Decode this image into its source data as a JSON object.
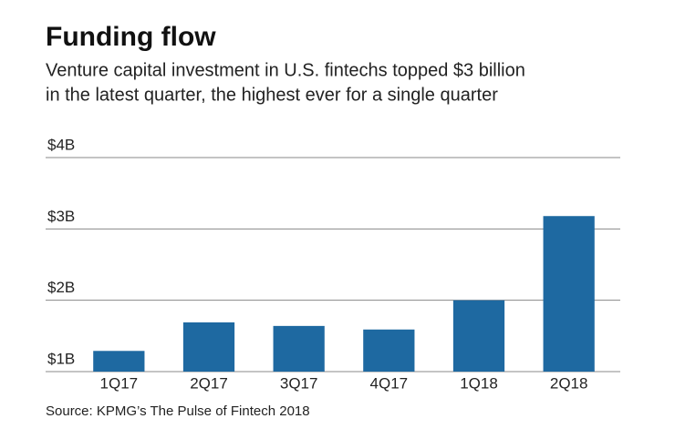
{
  "chart_data": {
    "type": "bar",
    "title": "Funding flow",
    "subtitle": [
      "Venture capital investment in U.S. fintechs topped $3 billion",
      "in the latest quarter, the highest ever for a single quarter"
    ],
    "categories": [
      "1Q17",
      "2Q17",
      "3Q17",
      "4Q17",
      "1Q18",
      "2Q18"
    ],
    "values": [
      1.29,
      1.69,
      1.64,
      1.59,
      2.0,
      3.18
    ],
    "color": "#1e69a1",
    "ylim": [
      1,
      4
    ],
    "yticks": [
      {
        "value": 1,
        "label": "$1B"
      },
      {
        "value": 2,
        "label": "$2B"
      },
      {
        "value": 3,
        "label": "$3B"
      },
      {
        "value": 4,
        "label": "$4B"
      }
    ],
    "grid": true,
    "source": "Source: KPMG’s The Pulse of Fintech 2018"
  }
}
